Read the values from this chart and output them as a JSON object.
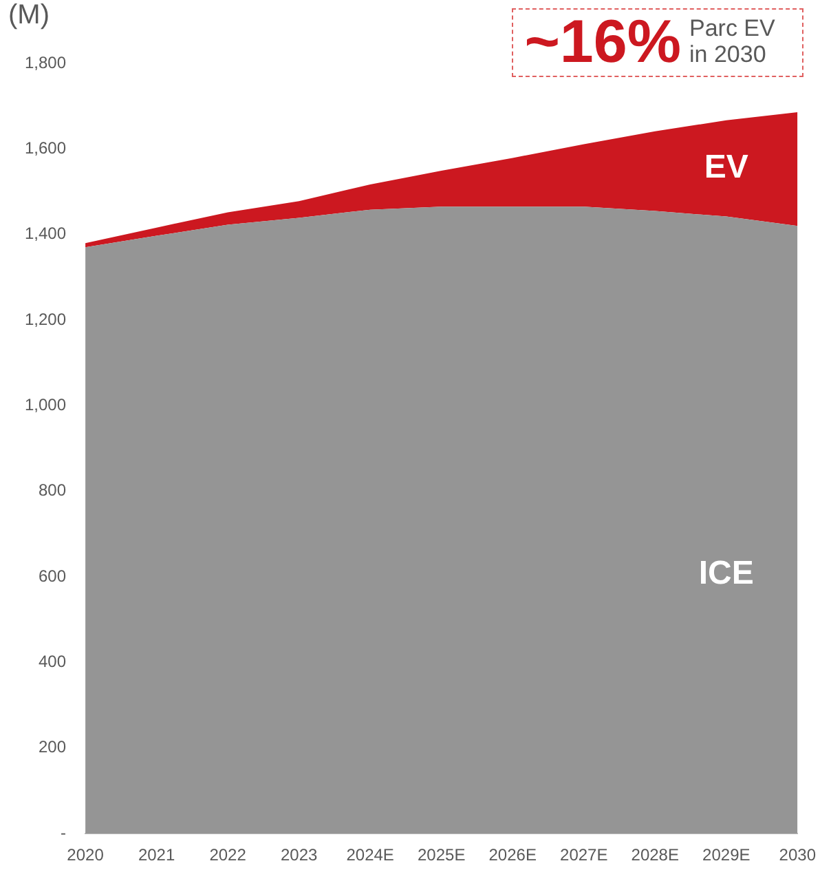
{
  "chart_data": {
    "type": "area",
    "ylabel": "(M)",
    "stacked": true,
    "categories": [
      "2020",
      "2021",
      "2022",
      "2023",
      "2024E",
      "2025E",
      "2026E",
      "2027E",
      "2028E",
      "2029E",
      "2030"
    ],
    "series": [
      {
        "name": "ICE",
        "color": "#959595",
        "values": [
          1370,
          1397,
          1423,
          1439,
          1458,
          1465,
          1465,
          1465,
          1455,
          1442,
          1420
        ]
      },
      {
        "name": "EV",
        "color": "#cc1820",
        "values": [
          10,
          19,
          29,
          39,
          59,
          84,
          114,
          146,
          186,
          225,
          266
        ]
      }
    ],
    "ylim": [
      0,
      1800
    ],
    "yticks": [
      {
        "value": 0,
        "label": "-"
      },
      200,
      400,
      600,
      800,
      {
        "value": 1000,
        "label": "1,000"
      },
      {
        "value": 1200,
        "label": "1,200"
      },
      {
        "value": 1400,
        "label": "1,400"
      },
      {
        "value": 1600,
        "label": "1,600"
      },
      {
        "value": 1800,
        "label": "1,800"
      }
    ],
    "grid": false,
    "legend": false,
    "annotations": [
      "~16%",
      "Parc EV in 2030"
    ]
  }
}
